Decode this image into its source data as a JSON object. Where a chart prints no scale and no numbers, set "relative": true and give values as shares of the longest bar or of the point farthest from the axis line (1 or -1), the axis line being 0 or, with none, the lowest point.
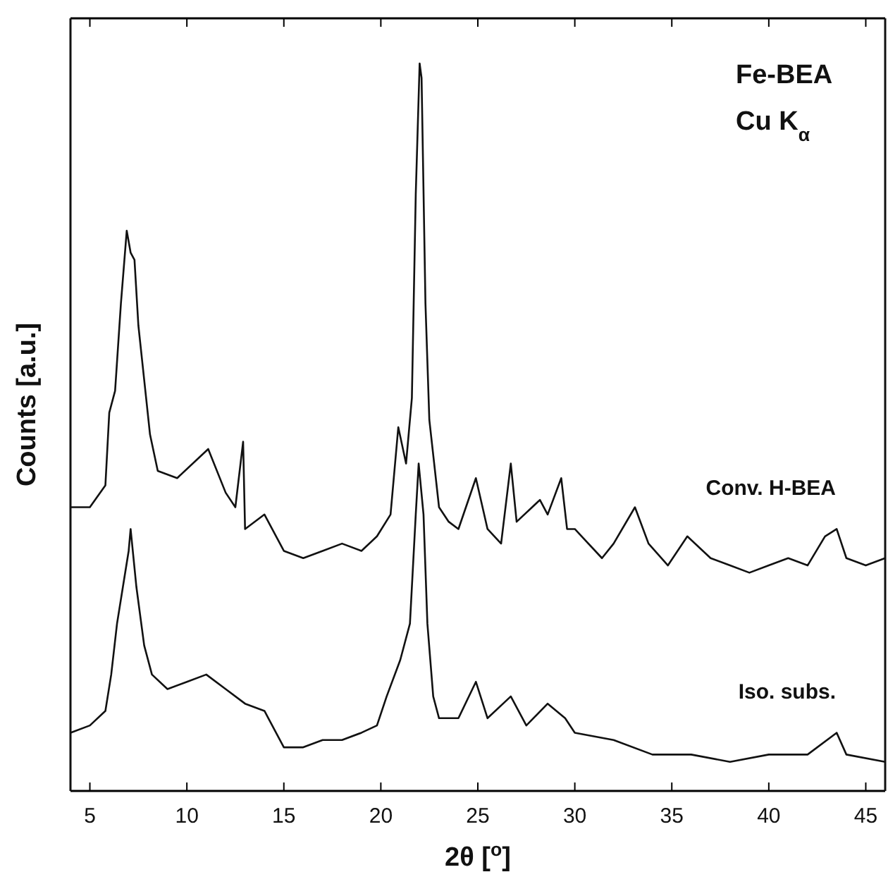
{
  "chart_data": {
    "type": "line",
    "relative": true,
    "xlabel": "2θ [$^{o}$]",
    "ylabel": "Counts [a.u.]",
    "annotations": [
      "Fe-BEA",
      "Cu K$_{α}$"
    ],
    "xlim": [
      4,
      46
    ],
    "xticks": [
      5,
      10,
      15,
      20,
      25,
      30,
      35,
      40,
      45
    ],
    "grid": false,
    "legend": false,
    "marker": "none",
    "line_style": "solid",
    "series": [
      {
        "name": "Conv. H-BEA",
        "color": "#111111",
        "x": [
          4,
          5,
          5.8,
          6,
          6.3,
          6.6,
          6.9,
          7.1,
          7.3,
          7.5,
          7.9,
          8.1,
          8.5,
          9.5,
          11.1,
          12,
          12.5,
          12.9,
          13,
          14,
          15,
          16,
          17,
          18,
          19,
          19.8,
          20.5,
          20.9,
          21.3,
          21.6,
          21.8,
          22,
          22.1,
          22.3,
          22.5,
          23,
          23.5,
          24,
          24.9,
          25.5,
          26.2,
          26.7,
          27,
          28.2,
          28.6,
          29.3,
          29.6,
          30,
          31.4,
          32,
          33.1,
          33.8,
          34.8,
          35.8,
          37,
          38,
          39,
          40,
          41,
          42,
          42.9,
          43.5,
          44,
          45,
          46
        ],
        "values": [
          0.39,
          0.39,
          0.42,
          0.52,
          0.55,
          0.67,
          0.77,
          0.74,
          0.73,
          0.64,
          0.54,
          0.49,
          0.44,
          0.43,
          0.47,
          0.41,
          0.39,
          0.48,
          0.36,
          0.38,
          0.33,
          0.32,
          0.33,
          0.34,
          0.33,
          0.35,
          0.38,
          0.5,
          0.45,
          0.54,
          0.82,
          1,
          0.98,
          0.67,
          0.51,
          0.39,
          0.37,
          0.36,
          0.43,
          0.36,
          0.34,
          0.45,
          0.37,
          0.4,
          0.38,
          0.43,
          0.36,
          0.36,
          0.32,
          0.34,
          0.39,
          0.34,
          0.31,
          0.35,
          0.32,
          0.31,
          0.3,
          0.31,
          0.32,
          0.31,
          0.35,
          0.36,
          0.32,
          0.31,
          0.32
        ]
      },
      {
        "name": "Iso. subs.",
        "color": "#111111",
        "x": [
          4,
          5,
          5.8,
          6.1,
          6.4,
          6.7,
          7,
          7.1,
          7.4,
          7.8,
          8.2,
          9,
          10,
          11,
          12,
          13,
          14,
          15,
          16,
          17,
          18,
          19,
          19.8,
          20.3,
          21,
          21.5,
          21.8,
          21.95,
          22.2,
          22.4,
          22.7,
          23,
          24,
          24.9,
          25.5,
          26.7,
          27.5,
          28.6,
          29.5,
          30,
          32,
          34,
          36,
          38,
          40,
          42,
          43.5,
          44,
          46
        ],
        "values": [
          0.08,
          0.09,
          0.11,
          0.16,
          0.23,
          0.28,
          0.33,
          0.36,
          0.28,
          0.2,
          0.16,
          0.14,
          0.15,
          0.16,
          0.14,
          0.12,
          0.11,
          0.06,
          0.06,
          0.07,
          0.07,
          0.08,
          0.09,
          0.13,
          0.18,
          0.23,
          0.38,
          0.45,
          0.38,
          0.23,
          0.13,
          0.1,
          0.1,
          0.15,
          0.1,
          0.13,
          0.09,
          0.12,
          0.1,
          0.08,
          0.07,
          0.05,
          0.05,
          0.04,
          0.05,
          0.05,
          0.08,
          0.05,
          0.04
        ]
      }
    ]
  }
}
